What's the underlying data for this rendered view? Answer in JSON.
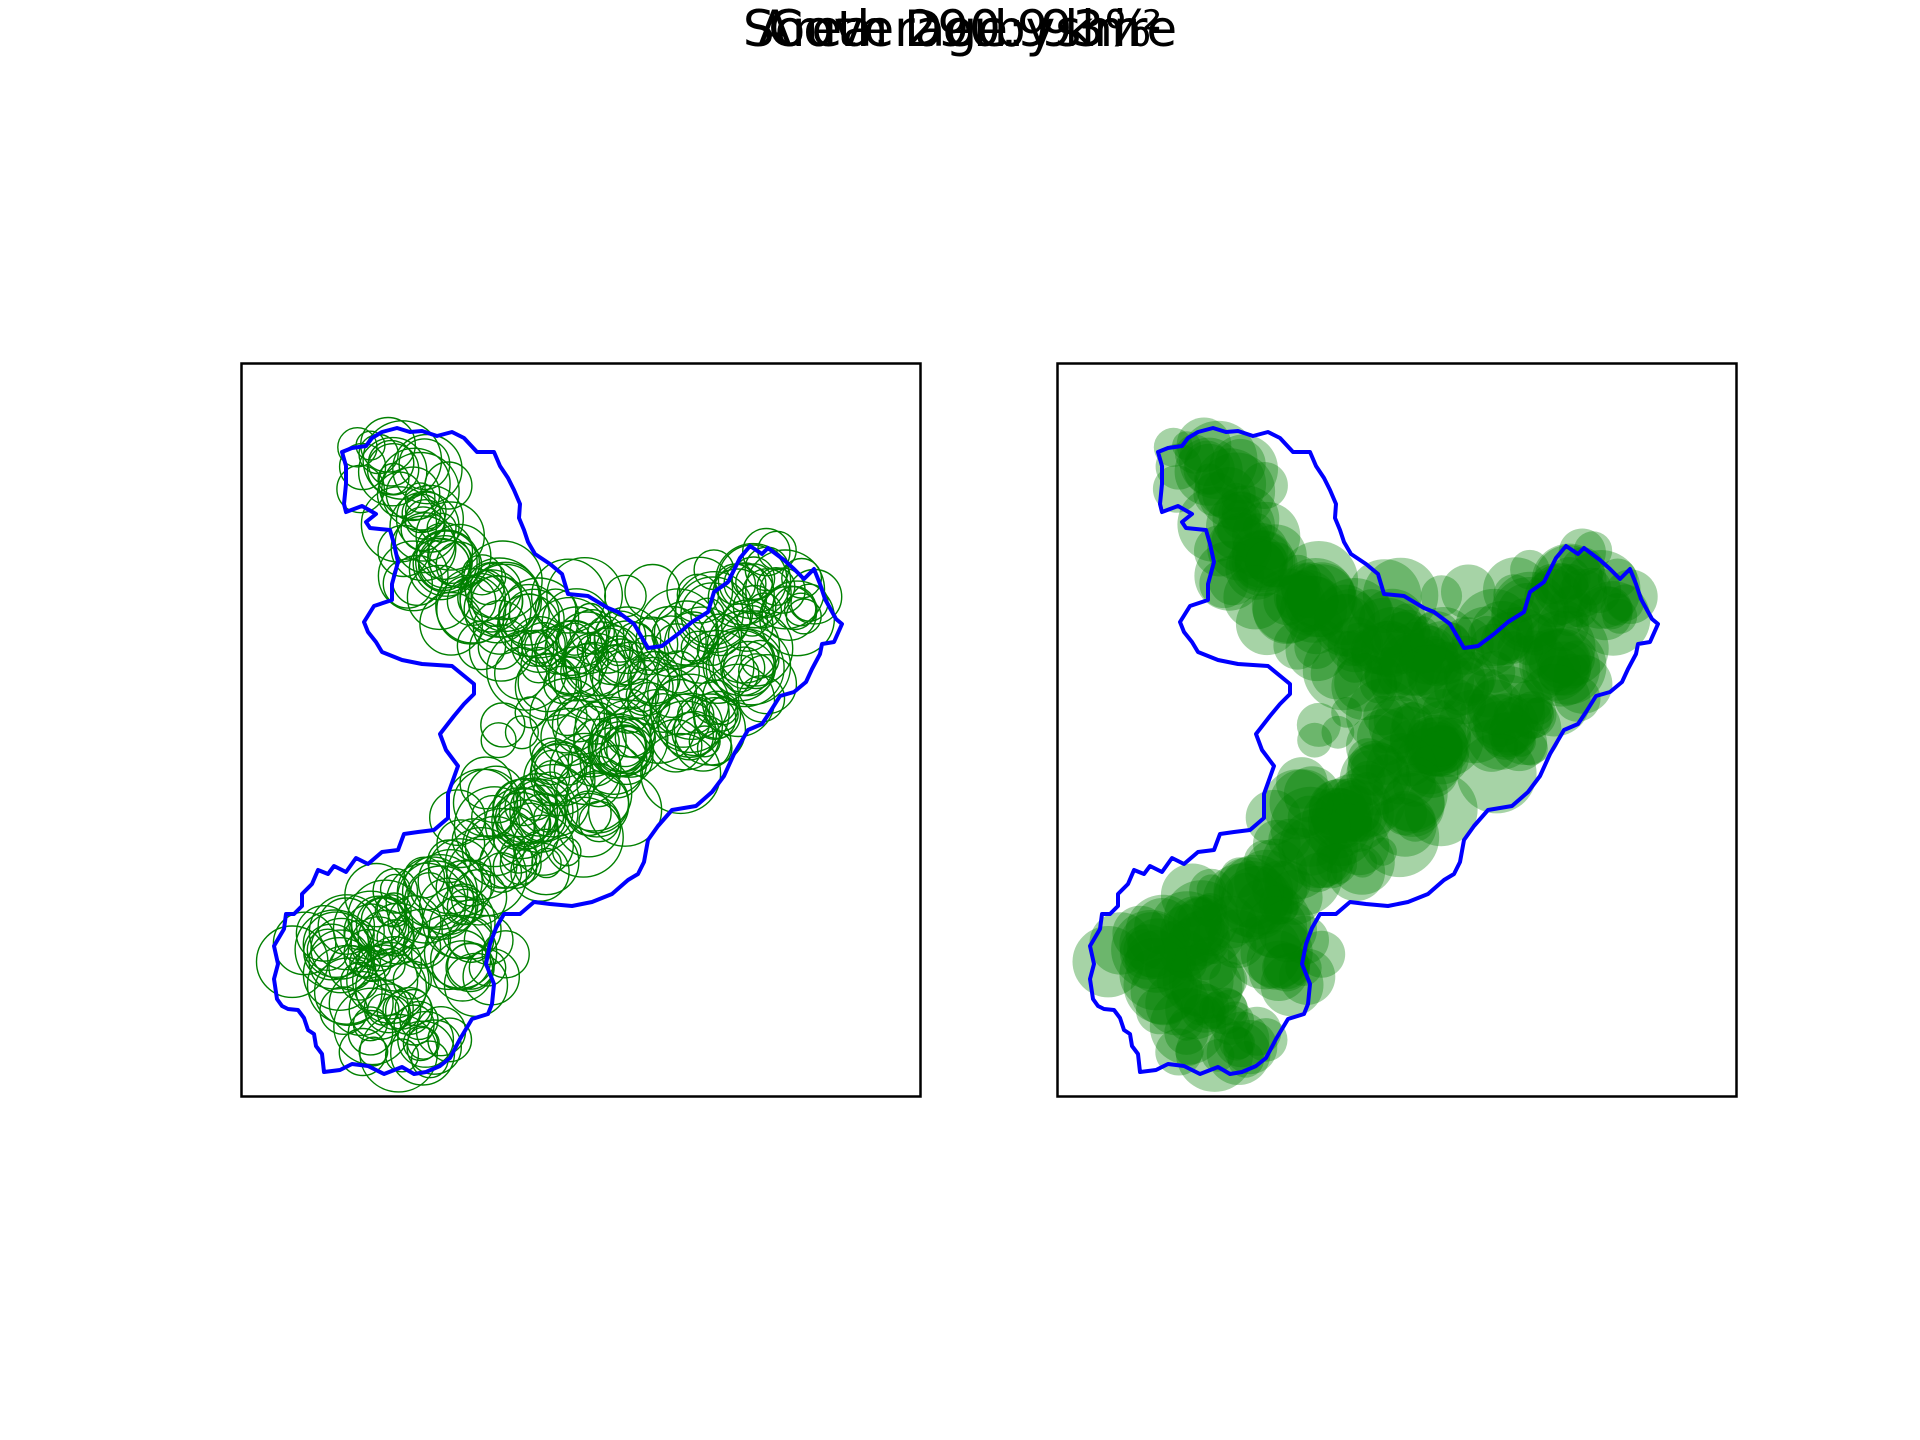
{
  "figure": {
    "title": "South Derbyshire",
    "coverage_label": "Coverage: 93%",
    "area_label": "Area: 290.9 km²"
  },
  "colors": {
    "boundary": "#0000ff",
    "coverage": "#008000",
    "frame": "#000000",
    "background": "#ffffff"
  },
  "panels": [
    {
      "style": "circle outlines",
      "fill_opacity": 0
    },
    {
      "style": "filled circles",
      "fill_opacity": 0.35
    }
  ]
}
